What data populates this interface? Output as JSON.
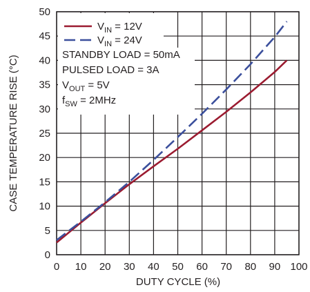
{
  "chart_data": {
    "type": "line",
    "xlabel": "DUTY CYCLE (%)",
    "ylabel": "CASE TEMPERATURE RISE  (°C)",
    "xlim": [
      0,
      100
    ],
    "ylim": [
      0,
      50
    ],
    "xticks": [
      0,
      10,
      20,
      30,
      40,
      50,
      60,
      70,
      80,
      90,
      100
    ],
    "yticks": [
      0,
      5,
      10,
      15,
      20,
      25,
      30,
      35,
      40,
      45,
      50
    ],
    "grid": true,
    "legend_position": "top-left",
    "series": [
      {
        "name": "VIN = 12V",
        "name_parts": {
          "main": "V",
          "sub": "IN",
          "rest": " = 12V"
        },
        "color": "#9b1b30",
        "dash": "solid",
        "x": [
          0,
          10,
          20,
          30,
          40,
          50,
          60,
          70,
          80,
          90,
          95
        ],
        "y": [
          2.5,
          6.6,
          10.6,
          14.5,
          18.2,
          21.8,
          25.6,
          29.4,
          33.4,
          37.6,
          40.0
        ]
      },
      {
        "name": "VIN = 24V",
        "name_parts": {
          "main": "V",
          "sub": "IN",
          "rest": " = 24V"
        },
        "color": "#3b4f9c",
        "dash": "dashed",
        "x": [
          0,
          10,
          20,
          30,
          40,
          50,
          60,
          70,
          80,
          90,
          95
        ],
        "y": [
          3.0,
          6.8,
          10.8,
          15.0,
          19.5,
          24.2,
          29.0,
          34.0,
          39.2,
          44.8,
          48.0
        ]
      }
    ],
    "annotations": [
      {
        "id": "standby",
        "main": "STANDBY LOAD = 50mA",
        "sub": "",
        "rest": ""
      },
      {
        "id": "pulsed",
        "main": "PULSED LOAD = 3A",
        "sub": "",
        "rest": ""
      },
      {
        "id": "vout",
        "main": "V",
        "sub": "OUT",
        "rest": " = 5V"
      },
      {
        "id": "fsw",
        "main": "f",
        "sub": "SW",
        "rest": " = 2MHz"
      }
    ],
    "colors": {
      "grid": "#231f20",
      "axis": "#231f20",
      "text": "#231f20",
      "background": "#ffffff"
    }
  }
}
